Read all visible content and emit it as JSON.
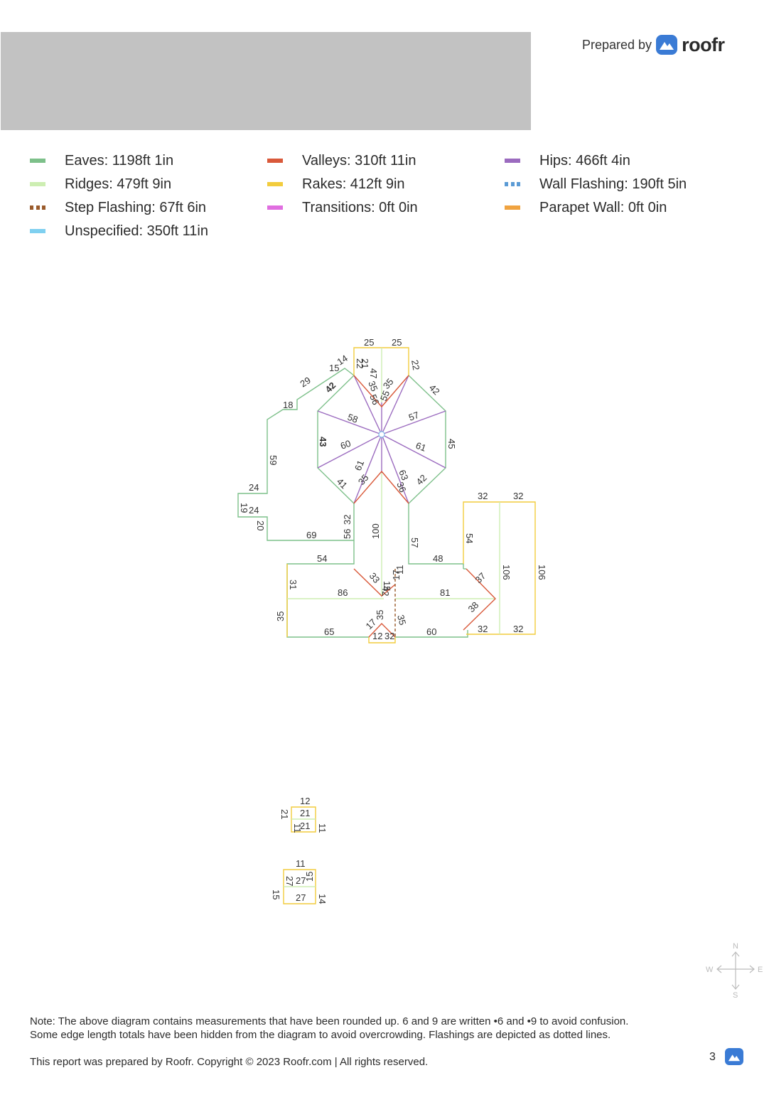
{
  "header": {
    "prepared_by": "Prepared by",
    "brand": "roofr",
    "logo_icon": "roofr-logo-icon",
    "accent": "#3a7bd5"
  },
  "legend": [
    {
      "label": "Eaves: 1198ft 1in",
      "color": "#7dc08a",
      "style": "solid"
    },
    {
      "label": "Valleys: 310ft 11in",
      "color": "#d9593a",
      "style": "solid"
    },
    {
      "label": "Hips: 466ft 4in",
      "color": "#9b6bbf",
      "style": "solid"
    },
    {
      "label": "Ridges: 479ft 9in",
      "color": "#cdeeb2",
      "style": "solid"
    },
    {
      "label": "Rakes: 412ft 9in",
      "color": "#f2cc3d",
      "style": "solid"
    },
    {
      "label": "Wall Flashing: 190ft 5in",
      "color": "#5b9bd5",
      "style": "dotted"
    },
    {
      "label": "Step Flashing: 67ft 6in",
      "color": "#9a5b2c",
      "style": "dotted"
    },
    {
      "label": "Transitions: 0ft 0in",
      "color": "#e06ee0",
      "style": "solid"
    },
    {
      "label": "Parapet Wall: 0ft 0in",
      "color": "#f0a340",
      "style": "solid"
    },
    {
      "label": "Unspecified: 350ft 11in",
      "color": "#7fd0f0",
      "style": "solid"
    }
  ],
  "diagram": {
    "labels": [
      "25",
      "25",
      "22",
      "42",
      "45",
      "42",
      "57",
      "61",
      "63",
      "36",
      "35",
      "61",
      "41",
      "43",
      "60",
      "58",
      "42",
      "29",
      "15",
      "14",
      "22",
      "21",
      "47",
      "35",
      "56",
      "55",
      "35",
      "18",
      "59",
      "24",
      "19",
      "24",
      "20",
      "69",
      "56",
      "32",
      "100",
      "57",
      "54",
      "86",
      "31",
      "35",
      "65",
      "33",
      "15",
      "42",
      "17",
      "11",
      "48",
      "81",
      "37",
      "38",
      "32",
      "32",
      "54",
      "106",
      "106",
      "32",
      "32",
      "60",
      "17",
      "35",
      "35",
      "12",
      "32",
      "12",
      "21",
      "21",
      "21",
      "11",
      "11",
      "11",
      "27",
      "27",
      "27",
      "15",
      "15",
      "14",
      "14"
    ]
  },
  "compass": {
    "n": "N",
    "s": "S",
    "e": "E",
    "w": "W"
  },
  "note": {
    "line1": "Note: The above diagram contains measurements that have been rounded up. 6 and 9 are written •6 and •9 to avoid confusion.",
    "line2": "Some edge length totals have been hidden from the diagram to avoid overcrowding. Flashings are depicted as dotted lines."
  },
  "footer": {
    "copyright": "This report was prepared by Roofr. Copyright © 2023 Roofr.com | All rights reserved.",
    "page": "3"
  }
}
